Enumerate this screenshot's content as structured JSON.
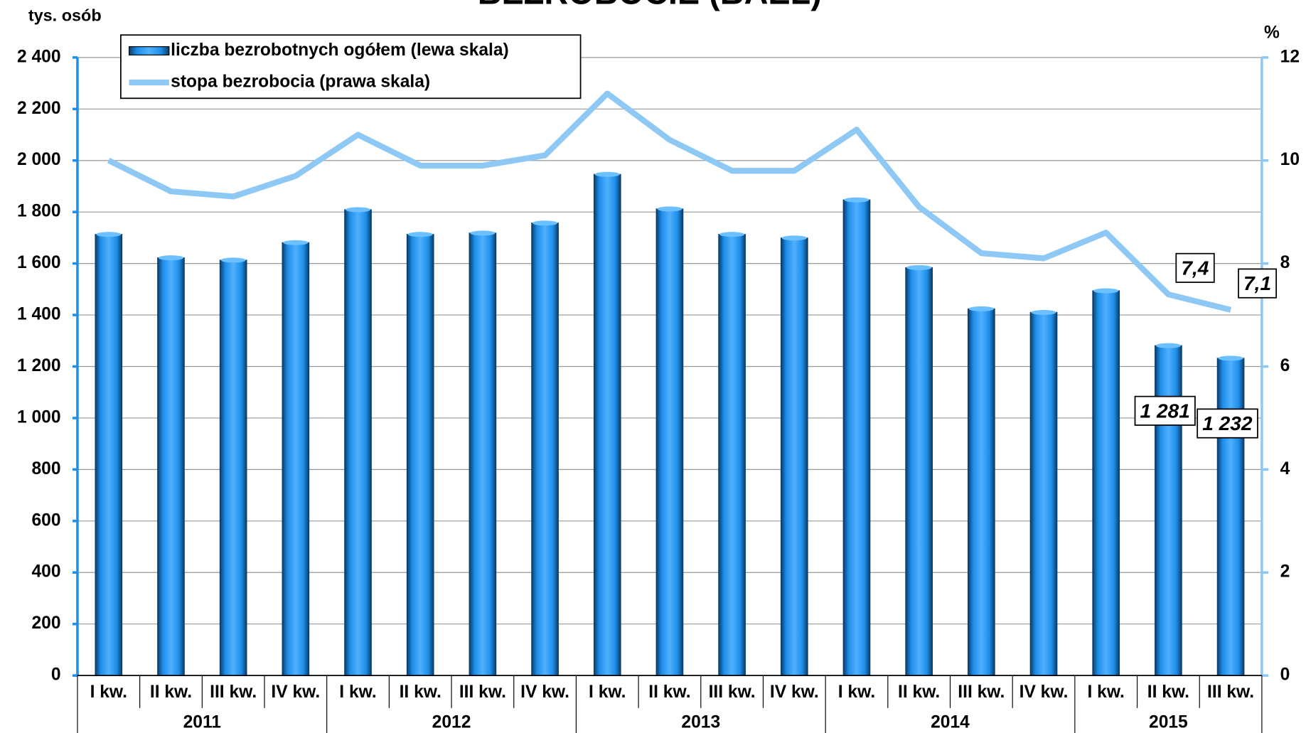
{
  "chart_data": {
    "type": "bar_line",
    "title": "BEZROBOCIE (BAEL)",
    "y_label": "tys. osób",
    "y2_label": "%",
    "categories": [
      "I kw.",
      "II kw.",
      "III kw.",
      "IV kw.",
      "I kw.",
      "II kw.",
      "III kw.",
      "IV kw.",
      "I kw.",
      "II kw.",
      "III kw.",
      "IV kw.",
      "I kw.",
      "II kw.",
      "III kw.",
      "IV kw.",
      "I kw.",
      "II kw.",
      "III kw."
    ],
    "years": [
      "2011",
      null,
      null,
      null,
      "2012",
      null,
      null,
      null,
      "2013",
      null,
      null,
      null,
      "2014",
      null,
      null,
      null,
      "2015",
      null,
      null
    ],
    "series": [
      {
        "name": "liczba bezrobotnych ogółem (lewa skala)",
        "type": "bar",
        "color": "#1e8ee8",
        "values": [
          1713,
          1622,
          1613,
          1681,
          1809,
          1713,
          1718,
          1757,
          1946,
          1812,
          1713,
          1699,
          1847,
          1584,
          1424,
          1410,
          1494,
          1281,
          1232
        ],
        "value_labels": [
          null,
          null,
          null,
          null,
          null,
          null,
          null,
          null,
          null,
          null,
          null,
          null,
          null,
          null,
          null,
          null,
          null,
          "1 281",
          "1 232"
        ]
      },
      {
        "name": "stopa bezrobocia (prawa skala)",
        "type": "line",
        "axis": "y2",
        "color": "#8ec8f5",
        "values": [
          10.0,
          9.4,
          9.3,
          9.7,
          10.5,
          9.9,
          9.9,
          10.1,
          11.3,
          10.4,
          9.8,
          9.8,
          10.6,
          9.1,
          8.2,
          8.1,
          8.6,
          7.4,
          7.1
        ],
        "value_labels": [
          null,
          null,
          null,
          null,
          null,
          null,
          null,
          null,
          null,
          null,
          null,
          null,
          null,
          null,
          null,
          null,
          null,
          "7,4",
          "7,1"
        ]
      }
    ],
    "ylim": [
      0,
      2400
    ],
    "yticks": [
      0,
      200,
      400,
      600,
      800,
      {
        "value": 1000,
        "label": "1 000"
      },
      {
        "value": 1200,
        "label": "1 200"
      },
      {
        "value": 1400,
        "label": "1 400"
      },
      {
        "value": 1600,
        "label": "1 600"
      },
      {
        "value": 1800,
        "label": "1 800"
      },
      {
        "value": 2000,
        "label": "2 000"
      },
      {
        "value": 2200,
        "label": "2 200"
      },
      {
        "value": 2400,
        "label": "2 400"
      }
    ],
    "y2lim": [
      0,
      12
    ],
    "y2ticks": [
      0,
      2,
      4,
      6,
      8,
      10,
      12
    ],
    "grid": true,
    "legend": "top-left"
  }
}
